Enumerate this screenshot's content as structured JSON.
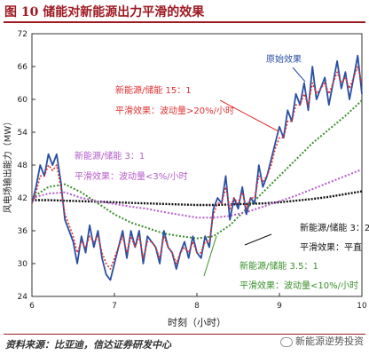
{
  "title": "图 10 储能对新能源出力平滑的效果",
  "source_text": "资料来源：比亚迪，信达证券研发中心",
  "watermark_text": "新能源逆势投资",
  "colors": {
    "accent": "#9e1a22",
    "raw": "#2a4fa3",
    "s15": "#e03030",
    "s3": "#b45cc8",
    "s35": "#3a8f2a",
    "s32": "#111111"
  },
  "chart_data": {
    "type": "line",
    "xlabel": "时刻（小时）",
    "ylabel": "风电场输出能力（MW）",
    "xlim": [
      6,
      10
    ],
    "ylim": [
      24,
      72
    ],
    "x_ticks": [
      6,
      7,
      8,
      9,
      10
    ],
    "y_ticks": [
      24,
      30,
      36,
      42,
      48,
      54,
      60,
      66,
      72
    ],
    "grid": false,
    "series": [
      {
        "name": "原始效果",
        "key": "raw",
        "style": "solid",
        "x": [
          6.0,
          6.05,
          6.1,
          6.15,
          6.2,
          6.25,
          6.3,
          6.35,
          6.4,
          6.45,
          6.5,
          6.55,
          6.6,
          6.65,
          6.7,
          6.75,
          6.8,
          6.85,
          6.9,
          6.95,
          7.0,
          7.05,
          7.1,
          7.15,
          7.2,
          7.25,
          7.3,
          7.35,
          7.4,
          7.45,
          7.5,
          7.55,
          7.6,
          7.65,
          7.7,
          7.75,
          7.8,
          7.85,
          7.9,
          7.95,
          8.0,
          8.05,
          8.1,
          8.15,
          8.2,
          8.25,
          8.3,
          8.35,
          8.4,
          8.45,
          8.5,
          8.55,
          8.6,
          8.65,
          8.7,
          8.75,
          8.8,
          8.85,
          8.9,
          8.95,
          9.0,
          9.05,
          9.1,
          9.15,
          9.2,
          9.25,
          9.3,
          9.35,
          9.4,
          9.45,
          9.5,
          9.55,
          9.6,
          9.65,
          9.7,
          9.75,
          9.8,
          9.85,
          9.9,
          9.95,
          10.0
        ],
        "y": [
          41,
          44,
          48,
          46,
          50,
          48,
          50,
          45,
          38,
          36,
          34,
          30,
          35,
          32,
          37,
          33,
          36,
          31,
          28,
          27,
          30,
          33,
          36,
          31,
          36,
          33,
          36,
          30,
          35,
          34,
          33,
          30,
          36,
          33,
          32,
          29,
          32,
          34,
          31,
          35,
          32,
          31,
          35,
          33,
          40,
          42,
          41,
          46,
          38,
          42,
          40,
          44,
          39,
          42,
          41,
          48,
          44,
          46,
          49,
          52,
          55,
          53,
          58,
          56,
          61,
          59,
          63,
          58,
          66,
          60,
          62,
          64,
          59,
          63,
          67,
          62,
          65,
          60,
          64,
          68,
          61
        ]
      },
      {
        "name": "新能源/储能 15：1",
        "key": "s15",
        "style": "dotted",
        "x": [
          6.0,
          6.05,
          6.1,
          6.15,
          6.2,
          6.25,
          6.3,
          6.35,
          6.4,
          6.45,
          6.5,
          6.55,
          6.6,
          6.65,
          6.7,
          6.75,
          6.8,
          6.85,
          6.9,
          6.95,
          7.0,
          7.05,
          7.1,
          7.15,
          7.2,
          7.25,
          7.3,
          7.35,
          7.4,
          7.45,
          7.5,
          7.55,
          7.6,
          7.65,
          7.7,
          7.75,
          7.8,
          7.85,
          7.9,
          7.95,
          8.0,
          8.05,
          8.1,
          8.15,
          8.2,
          8.25,
          8.3,
          8.35,
          8.4,
          8.45,
          8.5,
          8.55,
          8.6,
          8.65,
          8.7,
          8.75,
          8.8,
          8.85,
          8.9,
          8.95,
          9.0,
          9.05,
          9.1,
          9.15,
          9.2,
          9.25,
          9.3,
          9.35,
          9.4,
          9.45,
          9.5,
          9.55,
          9.6,
          9.65,
          9.7,
          9.75,
          9.8,
          9.85,
          9.9,
          9.95,
          10.0
        ],
        "y": [
          41,
          43,
          46,
          46,
          48,
          47,
          48,
          44,
          39,
          37,
          35,
          32,
          34,
          33,
          35,
          34,
          35,
          32,
          30,
          29,
          31,
          33,
          35,
          32,
          35,
          33,
          35,
          31,
          34,
          34,
          33,
          31,
          35,
          33,
          32,
          30,
          32,
          33,
          32,
          34,
          32,
          32,
          34,
          34,
          39,
          41,
          41,
          44,
          40,
          42,
          41,
          43,
          40,
          42,
          42,
          46,
          45,
          46,
          48,
          51,
          53,
          53,
          56,
          56,
          59,
          59,
          61,
          59,
          63,
          61,
          62,
          63,
          61,
          63,
          65,
          63,
          64,
          62,
          64,
          66,
          63
        ]
      },
      {
        "name": "新能源/储能 3：1",
        "key": "s3",
        "style": "dotted",
        "x": [
          6.0,
          6.2,
          6.4,
          6.6,
          6.8,
          7.0,
          7.2,
          7.4,
          7.6,
          7.8,
          8.0,
          8.2,
          8.4,
          8.6,
          8.8,
          9.0,
          9.2,
          9.4,
          9.6,
          9.8,
          10.0
        ],
        "y": [
          42,
          42.8,
          43,
          42,
          41.4,
          40.9,
          40.4,
          40,
          39.4,
          38.9,
          38.4,
          38.4,
          38.7,
          39.4,
          40.4,
          41.4,
          42.4,
          43.6,
          44.8,
          46,
          47.2
        ]
      },
      {
        "name": "新能源/储能 3.5：1",
        "key": "s35",
        "style": "dotted",
        "x": [
          6.0,
          6.2,
          6.4,
          6.6,
          6.8,
          7.0,
          7.2,
          7.4,
          7.6,
          7.8,
          8.0,
          8.2,
          8.4,
          8.6,
          8.8,
          9.0,
          9.2,
          9.4,
          9.6,
          9.8,
          10.0
        ],
        "y": [
          42,
          44,
          44.5,
          43,
          41,
          39,
          37.5,
          36.5,
          35.5,
          35,
          34.6,
          35,
          37,
          40,
          43,
          46,
          49,
          52,
          54.5,
          57,
          59.8
        ]
      },
      {
        "name": "新能源/储能 3：2",
        "key": "s32",
        "style": "dotted",
        "x": [
          6.0,
          6.2,
          6.4,
          6.6,
          6.8,
          7.0,
          7.2,
          7.4,
          7.6,
          7.8,
          8.0,
          8.2,
          8.4,
          8.6,
          8.8,
          9.0,
          9.2,
          9.4,
          9.6,
          9.8,
          10.0
        ],
        "y": [
          41.6,
          41.6,
          41.5,
          41.4,
          41.3,
          41.2,
          41.1,
          41,
          40.9,
          40.8,
          40.7,
          40.7,
          40.8,
          40.9,
          41,
          41.2,
          41.5,
          41.8,
          42.2,
          42.7,
          43.2
        ]
      }
    ],
    "annotations": [
      {
        "key": "raw",
        "lines": [
          "原始效果"
        ]
      },
      {
        "key": "s15",
        "lines": [
          "新能源/储能 15：1",
          "平滑效果：波动量>20%/小时"
        ]
      },
      {
        "key": "s3",
        "lines": [
          "新能源/储能 3：1",
          "平滑效果：波动量<3%/小时"
        ]
      },
      {
        "key": "s32",
        "lines": [
          "新能源/储能 3：2",
          "平滑效果：平直"
        ]
      },
      {
        "key": "s35",
        "lines": [
          "新能源/储能 3.5：1",
          "平滑效果：波动量<10%/小时"
        ]
      }
    ]
  }
}
